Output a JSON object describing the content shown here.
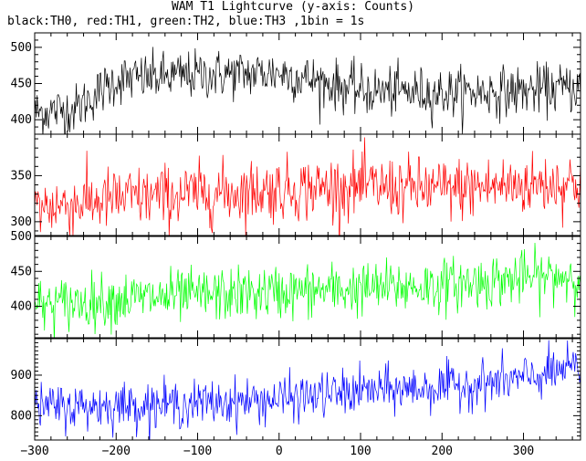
{
  "title": "WAM T1 Lightcurve (y-axis: Counts)",
  "subtitle": "black:TH0, red:TH1, green:TH2, blue:TH3 ,1bin = 1s",
  "chart_data": {
    "type": "line",
    "x": {
      "range": [
        -300,
        370
      ],
      "ticks": [
        -300,
        -200,
        -100,
        0,
        100,
        200,
        300
      ],
      "tick_labels": [
        "−300",
        "−200",
        "−100",
        "0",
        "100",
        "200",
        "300"
      ],
      "bin_seconds": 1
    },
    "panels": [
      {
        "series": "TH0",
        "color": "#000000",
        "ylim": [
          380,
          520
        ],
        "yticks": [
          400,
          450,
          500
        ],
        "trend": [
          [
            -300,
            410
          ],
          [
            -250,
            415
          ],
          [
            -200,
            455
          ],
          [
            -100,
            462
          ],
          [
            0,
            465
          ],
          [
            100,
            440
          ],
          [
            200,
            437
          ],
          [
            300,
            440
          ],
          [
            370,
            445
          ]
        ],
        "noise_sd": 17
      },
      {
        "series": "TH1",
        "color": "#ff0000",
        "ylim": [
          285,
          395
        ],
        "yticks": [
          300,
          350
        ],
        "trend": [
          [
            -300,
            315
          ],
          [
            -200,
            325
          ],
          [
            -100,
            330
          ],
          [
            0,
            335
          ],
          [
            100,
            338
          ],
          [
            200,
            335
          ],
          [
            300,
            340
          ],
          [
            370,
            343
          ]
        ],
        "noise_sd": 17
      },
      {
        "series": "TH2",
        "color": "#00ff00",
        "ylim": [
          355,
          500
        ],
        "yticks": [
          400,
          450,
          500
        ],
        "trend": [
          [
            -300,
            400
          ],
          [
            -200,
            410
          ],
          [
            -100,
            415
          ],
          [
            0,
            420
          ],
          [
            100,
            425
          ],
          [
            200,
            430
          ],
          [
            300,
            440
          ],
          [
            370,
            445
          ]
        ],
        "noise_sd": 19
      },
      {
        "series": "TH3",
        "color": "#0000ff",
        "ylim": [
          740,
          990
        ],
        "yticks": [
          800,
          900
        ],
        "trend": [
          [
            -300,
            820
          ],
          [
            -200,
            825
          ],
          [
            -100,
            830
          ],
          [
            0,
            840
          ],
          [
            100,
            860
          ],
          [
            200,
            870
          ],
          [
            300,
            890
          ],
          [
            370,
            920
          ]
        ],
        "noise_sd": 28
      }
    ]
  }
}
